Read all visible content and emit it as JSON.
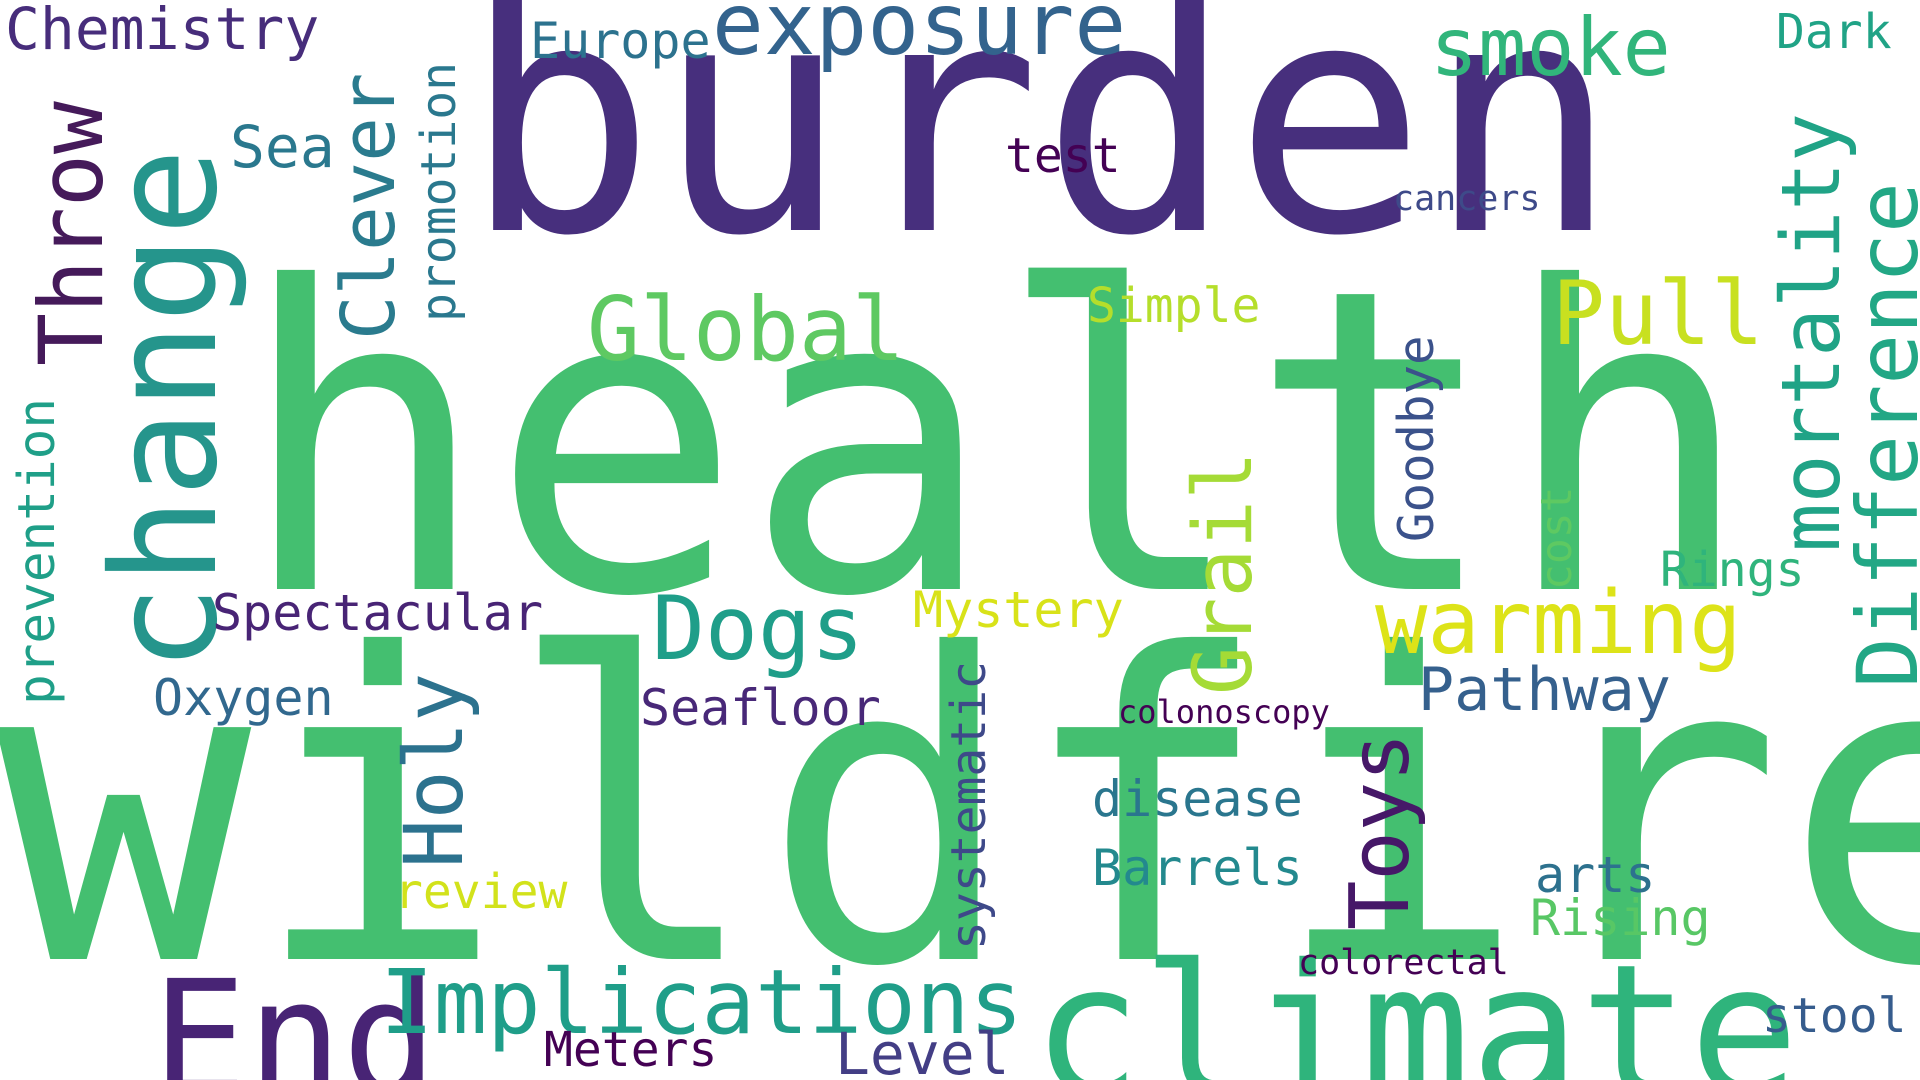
{
  "words": {
    "burden": "burden",
    "health": "health",
    "wildfire": "wildfire",
    "climate": "climate",
    "change": "change",
    "exposure": "exposure",
    "throw": "Throw",
    "chemistry": "Chemistry",
    "europe": "Europe",
    "smoke": "smoke",
    "dark": "Dark",
    "sea": "Sea",
    "clever": "Clever",
    "promotion": "promotion",
    "test": "test",
    "cancers": "cancers",
    "mortality": "mortality",
    "difference": "Difference",
    "global": "Global",
    "pull": "Pull",
    "simple": "Simple",
    "grail": "Grail",
    "goodbye": "Goodbye",
    "cost": "cost",
    "rings": "Rings",
    "warming": "warming",
    "dogs": "Dogs",
    "spectacular": "Spectacular",
    "mystery": "Mystery",
    "prevention": "prevention",
    "oxygen": "Oxygen",
    "holy": "Holy",
    "seafloor": "Seafloor",
    "systematic": "systematic",
    "colonoscopy": "colonoscopy",
    "toys": "Toys",
    "pathway": "Pathway",
    "disease": "disease",
    "barrels": "Barrels",
    "review": "review",
    "arts": "arts",
    "rising": "Rising",
    "end": "End",
    "implications": "Implications",
    "colorectal": "colorectal",
    "meters": "Meters",
    "level": "Level",
    "stool": "stool"
  },
  "colors": {
    "background": "#ffffff",
    "palette": "viridis"
  }
}
